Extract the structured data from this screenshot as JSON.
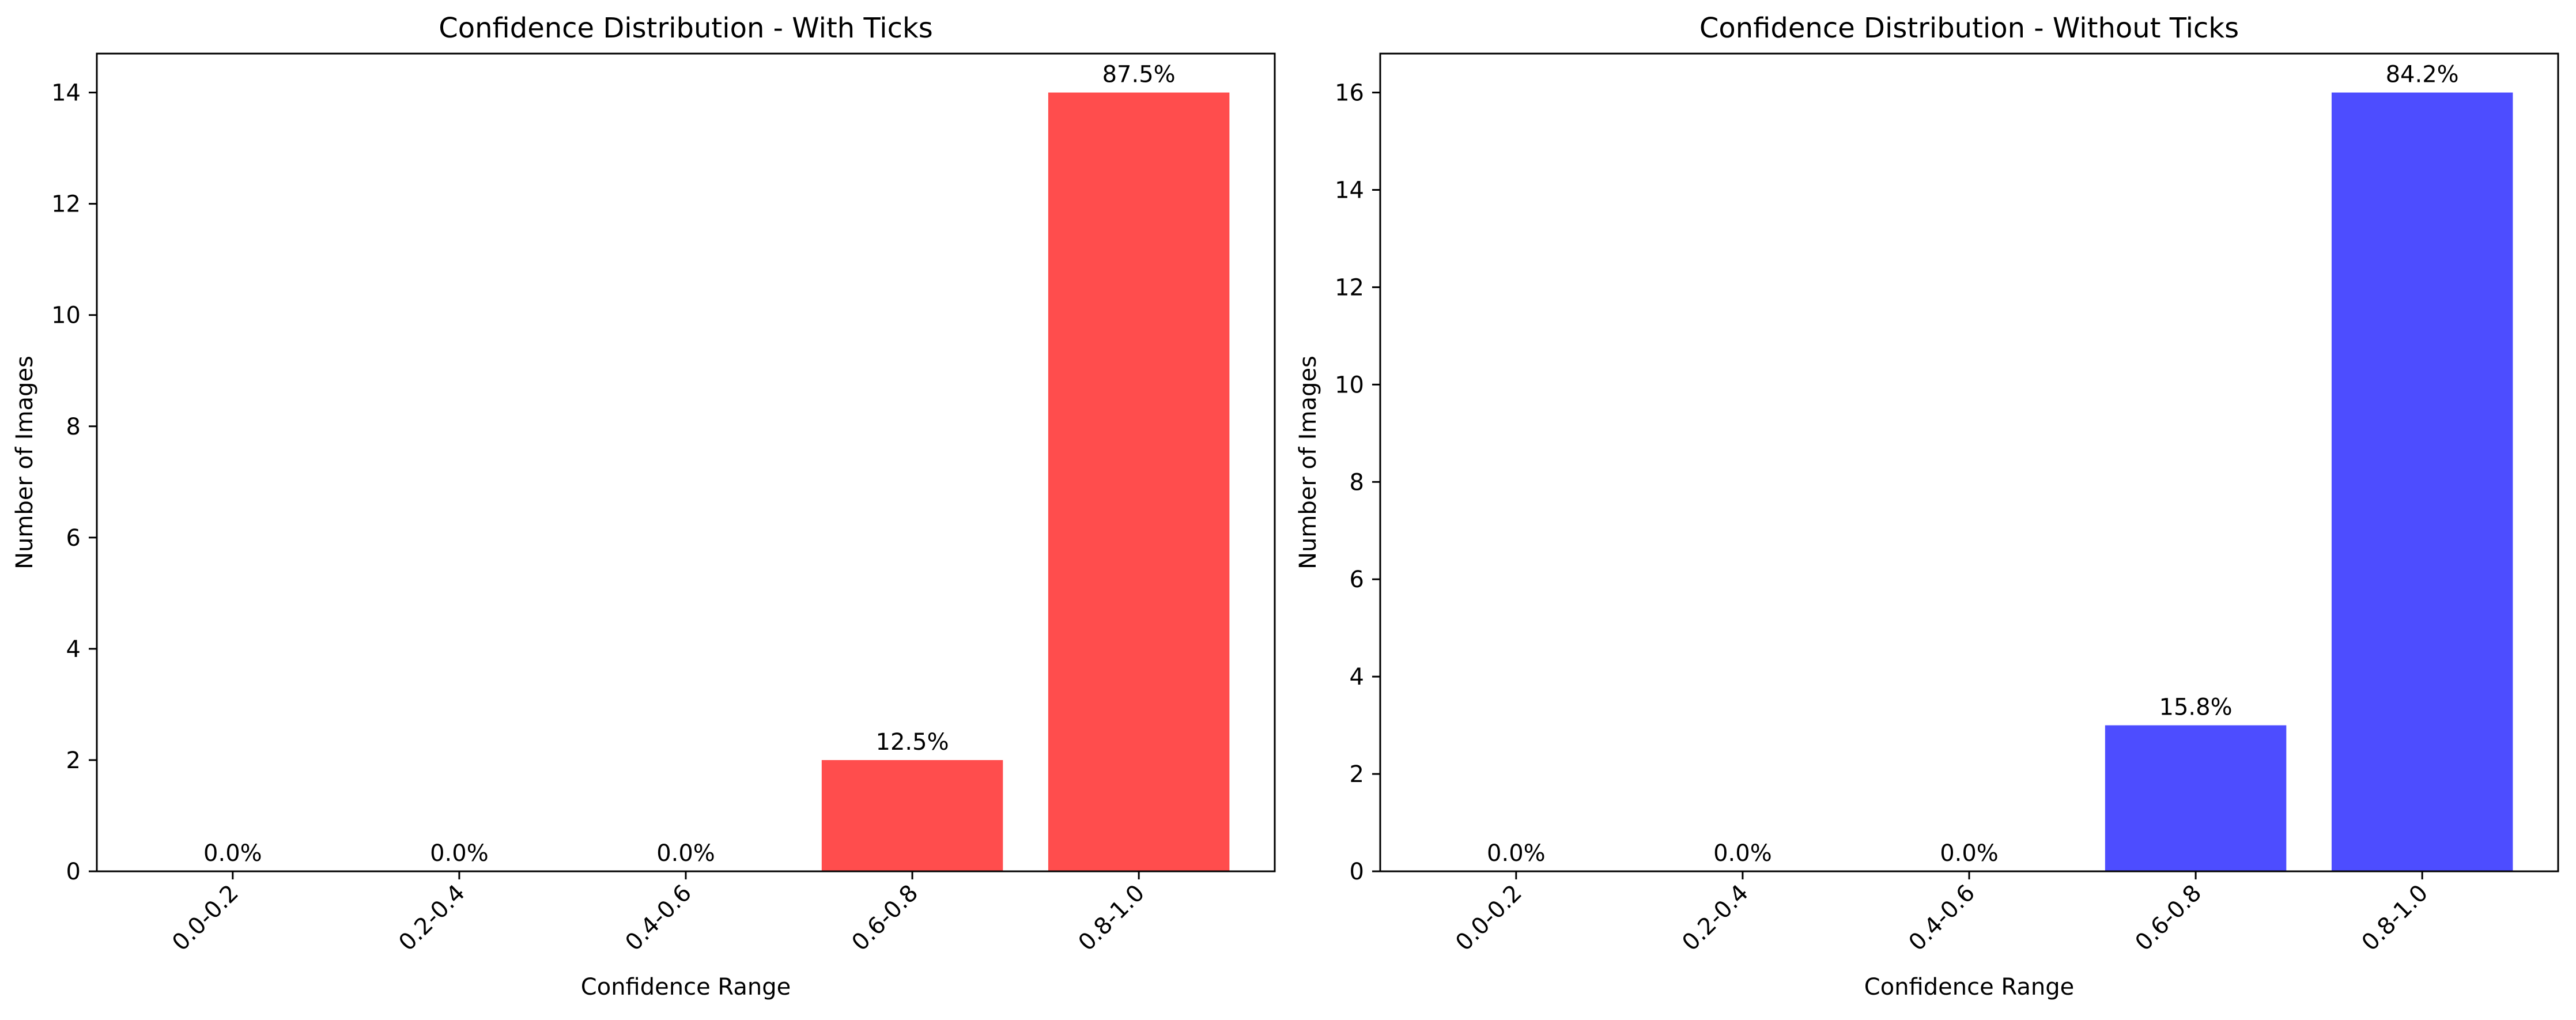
{
  "chart_data": [
    {
      "type": "bar",
      "title": "Confidence Distribution - With Ticks",
      "xlabel": "Confidence Range",
      "ylabel": "Number of Images",
      "categories": [
        "0.0-0.2",
        "0.2-0.4",
        "0.4-0.6",
        "0.6-0.8",
        "0.8-1.0"
      ],
      "values": [
        0,
        0,
        0,
        2,
        14
      ],
      "data_labels": [
        "0.0%",
        "0.0%",
        "0.0%",
        "12.5%",
        "87.5%"
      ],
      "ylim": [
        0,
        14.7
      ],
      "yticks": [
        0,
        2,
        4,
        6,
        8,
        10,
        12,
        14
      ],
      "bar_color": "#ff4d4d",
      "grid": false,
      "xtick_rotation_deg": 45
    },
    {
      "type": "bar",
      "title": "Confidence Distribution - Without Ticks",
      "xlabel": "Confidence Range",
      "ylabel": "Number of Images",
      "categories": [
        "0.0-0.2",
        "0.2-0.4",
        "0.4-0.6",
        "0.6-0.8",
        "0.8-1.0"
      ],
      "values": [
        0,
        0,
        0,
        3,
        16
      ],
      "data_labels": [
        "0.0%",
        "0.0%",
        "0.0%",
        "15.8%",
        "84.2%"
      ],
      "ylim": [
        0,
        16.8
      ],
      "yticks": [
        0,
        2,
        4,
        6,
        8,
        10,
        12,
        14,
        16
      ],
      "bar_color": "#4d4dff",
      "grid": false,
      "xtick_rotation_deg": 45
    }
  ]
}
